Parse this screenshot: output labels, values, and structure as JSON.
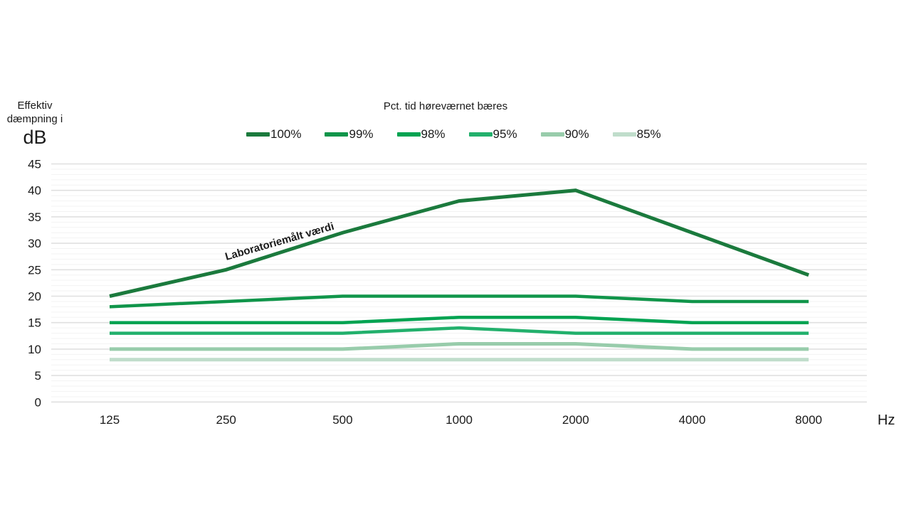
{
  "y_axis_title": {
    "line1": "Effektiv",
    "line2": "dæmpning i",
    "unit": "dB"
  },
  "x_axis_unit": "Hz",
  "legend": {
    "title": "Pct. tid høreværnet bæres",
    "items": [
      {
        "label": "100%",
        "color": "#1b7a3d"
      },
      {
        "label": "99%",
        "color": "#10954a"
      },
      {
        "label": "98%",
        "color": "#00a351"
      },
      {
        "label": "95%",
        "color": "#22b06c"
      },
      {
        "label": "90%",
        "color": "#98ccab"
      },
      {
        "label": "85%",
        "color": "#c0ddcb"
      }
    ]
  },
  "annotation": "Laboratoriemålt værdi",
  "colors": {
    "background": "#ffffff",
    "grid_minor": "#f3f3f3",
    "grid_major": "#e0e0e0",
    "text": "#1a1a1a"
  },
  "chart_data": {
    "type": "line",
    "title": "Pct. tid høreværnet bæres",
    "ylabel": "Effektiv dæmpning i dB",
    "xlabel": "Hz",
    "categories": [
      "125",
      "250",
      "500",
      "1000",
      "2000",
      "4000",
      "8000"
    ],
    "ylim": [
      0,
      45
    ],
    "y_major_step": 5,
    "y_minor_step": 1,
    "grid": true,
    "legend_position": "top",
    "series": [
      {
        "name": "100%",
        "color": "#1b7a3d",
        "stroke_width": 5.0,
        "values": [
          20,
          25,
          32,
          38,
          40,
          32,
          24
        ]
      },
      {
        "name": "99%",
        "color": "#10954a",
        "stroke_width": 4.5,
        "values": [
          18,
          19,
          20,
          20,
          20,
          19,
          19
        ]
      },
      {
        "name": "98%",
        "color": "#00a351",
        "stroke_width": 4.5,
        "values": [
          15,
          15,
          15,
          16,
          16,
          15,
          15
        ]
      },
      {
        "name": "95%",
        "color": "#22b06c",
        "stroke_width": 4.5,
        "values": [
          13,
          13,
          13,
          14,
          13,
          13,
          13
        ]
      },
      {
        "name": "90%",
        "color": "#98ccab",
        "stroke_width": 5.0,
        "values": [
          10,
          10,
          10,
          11,
          11,
          10,
          10
        ]
      },
      {
        "name": "85%",
        "color": "#c0ddcb",
        "stroke_width": 5.0,
        "values": [
          8,
          8,
          8,
          8,
          8,
          8,
          8
        ]
      }
    ],
    "annotations": [
      {
        "text": "Laboratoriemålt værdi",
        "series": "100%",
        "between_categories": "250–500",
        "rotation_deg": -16
      }
    ]
  }
}
